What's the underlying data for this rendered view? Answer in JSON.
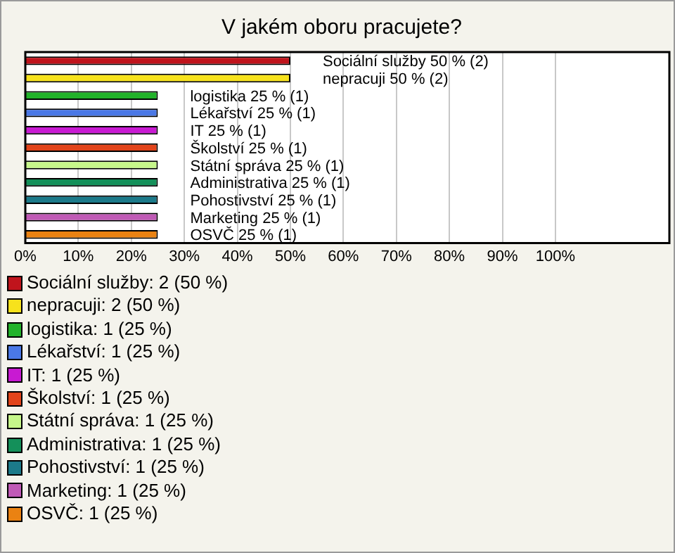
{
  "chart_data": {
    "type": "bar",
    "orientation": "horizontal",
    "title": "V jakém oboru pracujete?",
    "categories": [
      null,
      null,
      null,
      null,
      null,
      null,
      null,
      null,
      null,
      null,
      null
    ],
    "values": [
      50,
      50,
      25,
      25,
      25,
      25,
      25,
      25,
      25,
      25,
      25
    ],
    "colors": [
      "#c0141c",
      "#f7e21c",
      "#22b22a",
      "#4a78e6",
      "#c81ad2",
      "#e2441a",
      "#c6f78a",
      "#14905a",
      "#1c7a8a",
      "#c05ab6",
      "#ea8212"
    ],
    "value_labels": [
      "Sociální služby 50 % (2)",
      "nepracuji 50 % (2)",
      "logistika 25 % (1)",
      "Lékařství 25 % (1)",
      "IT 25 % (1)",
      "Školství 25 % (1)",
      "Státní správa 25 % (1)",
      "Administrativa 25 % (1)",
      "Pohostivství 25 % (1)",
      "Marketing 25 % (1)",
      "OSVČ 25 % (1)"
    ],
    "xlim": [
      0,
      121.5
    ],
    "xticks": [
      {
        "value": 0,
        "label": "0%"
      },
      {
        "value": 10,
        "label": "10%"
      },
      {
        "value": 20,
        "label": "20%"
      },
      {
        "value": 30,
        "label": "30%"
      },
      {
        "value": 40,
        "label": "40%"
      },
      {
        "value": 50,
        "label": "50%"
      },
      {
        "value": 60,
        "label": "60%"
      },
      {
        "value": 70,
        "label": "70%"
      },
      {
        "value": 80,
        "label": "80%"
      },
      {
        "value": 90,
        "label": "90%"
      },
      {
        "value": 100,
        "label": "100%"
      }
    ],
    "grid": "x",
    "tick_labels": "x",
    "annotations": [
      "Sociální služby: 2 (50 %)",
      "nepracuji: 2 (50 %)",
      "logistika: 1 (25 %)",
      "Lékařství: 1 (25 %)",
      "IT: 1 (25 %)",
      "Školství: 1 (25 %)",
      "Státní správa: 1 (25 %)",
      "Administrativa: 1 (25 %)",
      "Pohostivství: 1 (25 %)",
      "Marketing: 1 (25 %)",
      "OSVČ: 1 (25 %)"
    ]
  }
}
